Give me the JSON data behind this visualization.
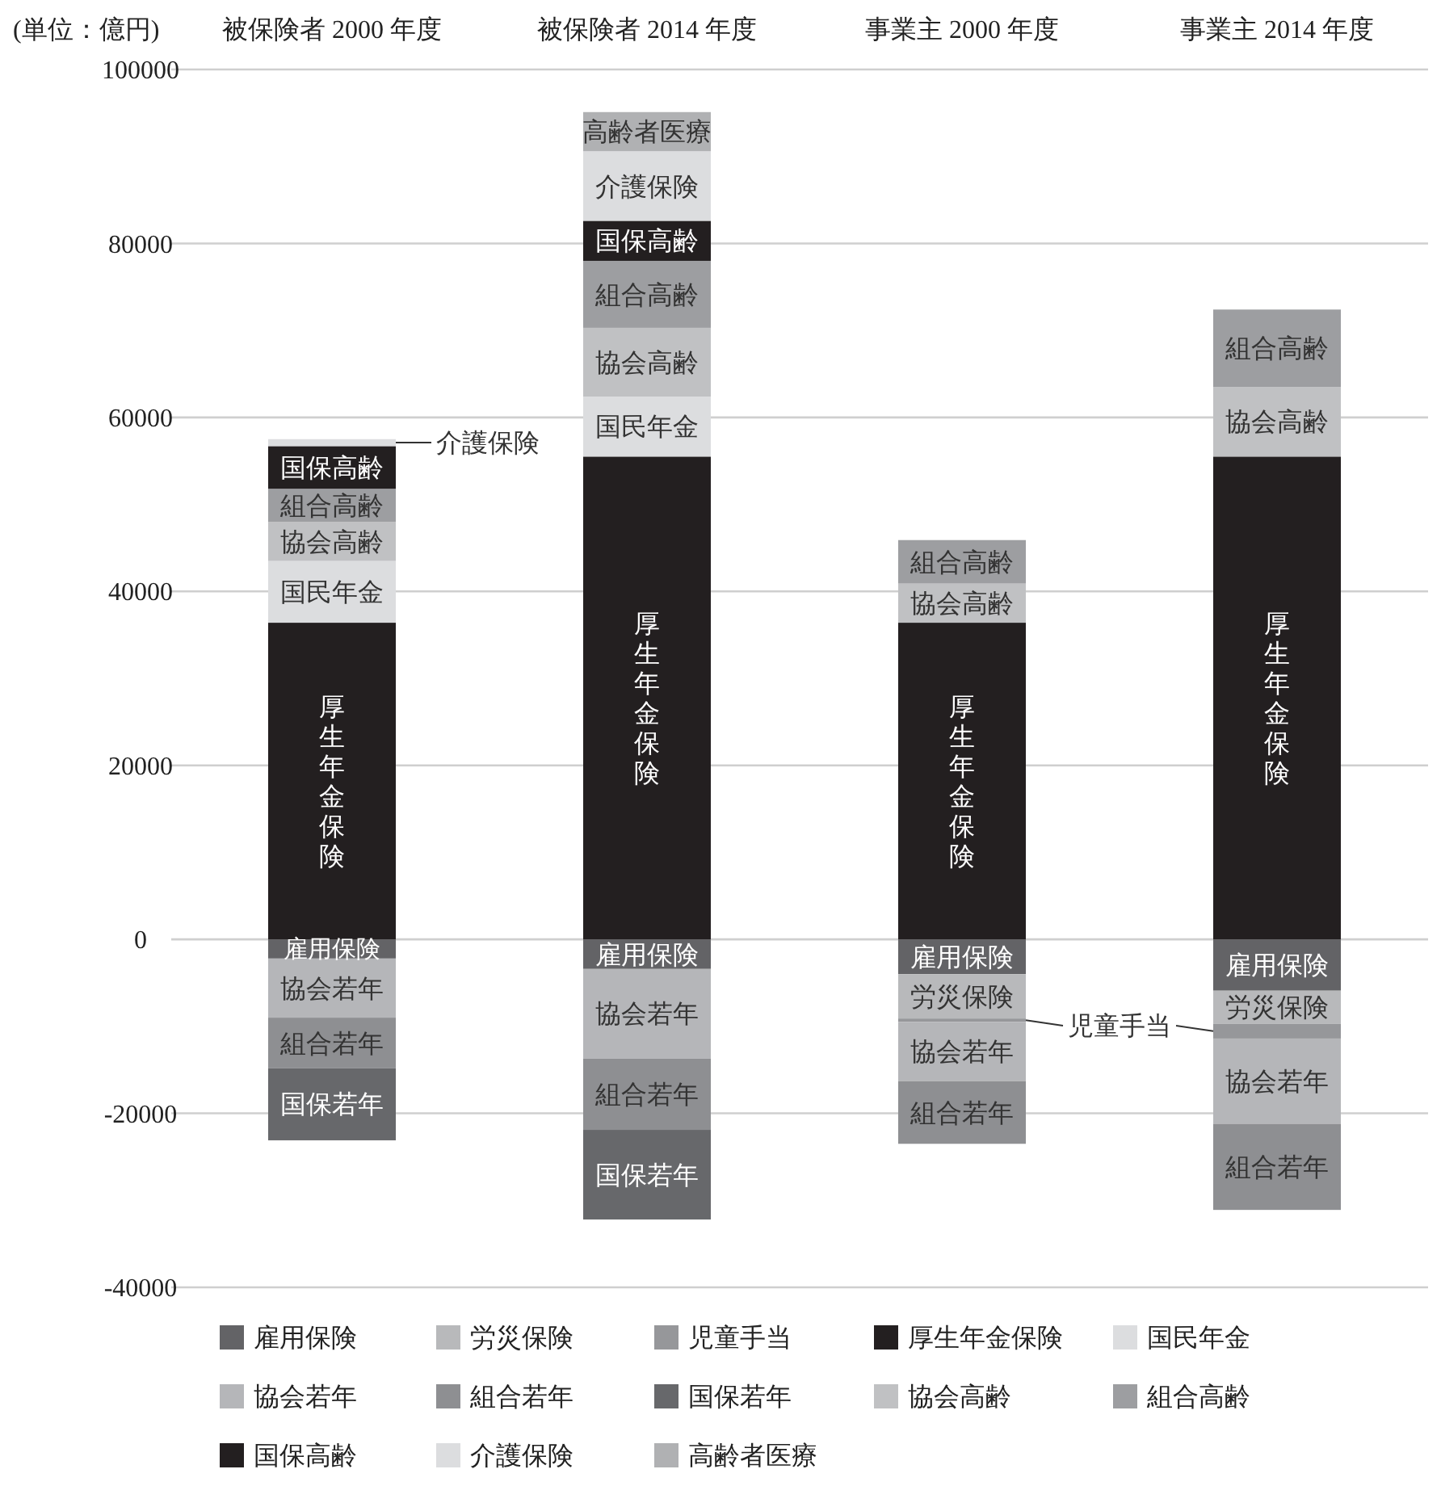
{
  "chart_data": {
    "type": "bar",
    "stacked": true,
    "ylabel": "(単位：億円)",
    "categories": [
      "被保険者 2000 年度",
      "被保険者 2014 年度",
      "事業主 2000 年度",
      "事業主 2014 年度"
    ],
    "ylim": [
      -40000,
      100000
    ],
    "yticks": [
      -40000,
      -20000,
      0,
      20000,
      40000,
      60000,
      80000,
      100000
    ],
    "grid": "y",
    "legend": "bottom",
    "series": [
      {
        "name": "雇用保険",
        "color": "#636366",
        "values": [
          -2200,
          -3400,
          -4000,
          -5900
        ],
        "value_labels": [
          "雇用保険",
          "雇用保険",
          "雇用保険",
          "雇用保険"
        ]
      },
      {
        "name": "労災保険",
        "color": "#b8b9bb",
        "values": [
          null,
          null,
          -5100,
          -3800
        ],
        "value_labels": [
          null,
          null,
          "労災保険",
          "労災保険"
        ]
      },
      {
        "name": "児童手当",
        "color": "#96979a",
        "values": [
          null,
          null,
          -400,
          -1700
        ],
        "value_labels": [
          null,
          null,
          "児童手当",
          null
        ]
      },
      {
        "name": "厚生年金保険",
        "color": "#231f20",
        "values": [
          36400,
          55500,
          36400,
          55500
        ],
        "value_labels": [
          "厚生年金保険",
          "厚生年金保険",
          "厚生年金保険",
          "厚生年金保険"
        ]
      },
      {
        "name": "国民年金",
        "color": "#dcdddf",
        "values": [
          7100,
          6900,
          null,
          null
        ],
        "value_labels": [
          "国民年金",
          "国民年金",
          null,
          null
        ]
      },
      {
        "name": "協会若年",
        "color": "#b5b6b9",
        "values": [
          -6800,
          -10300,
          -6800,
          -9800
        ],
        "value_labels": [
          "協会若年",
          "協会若年",
          "協会若年",
          "協会若年"
        ]
      },
      {
        "name": "組合若年",
        "color": "#8e8f92",
        "values": [
          -5800,
          -8200,
          -7200,
          -9900
        ],
        "value_labels": [
          "組合若年",
          "組合若年",
          "組合若年",
          "組合若年"
        ]
      },
      {
        "name": "国保若年",
        "color": "#67686b",
        "values": [
          -8300,
          -10300,
          null,
          null
        ],
        "value_labels": [
          "国保若年",
          "国保若年",
          null,
          null
        ]
      },
      {
        "name": "協会高齢",
        "color": "#c0c1c3",
        "values": [
          4500,
          7900,
          4500,
          8000
        ],
        "value_labels": [
          "協会高齢",
          "協会高齢",
          "協会高齢",
          "協会高齢"
        ]
      },
      {
        "name": "組合高齢",
        "color": "#9d9ea1",
        "values": [
          3800,
          7700,
          5000,
          8900
        ],
        "value_labels": [
          "組合高齢",
          "組合高齢",
          "組合高齢",
          "組合高齢"
        ]
      },
      {
        "name": "国保高齢",
        "color": "#231f20",
        "values": [
          4900,
          4600,
          null,
          null
        ],
        "value_labels": [
          "国保高齢",
          "国保高齢",
          null,
          null
        ]
      },
      {
        "name": "介護保険",
        "color": "#dcdddf",
        "values": [
          800,
          8000,
          null,
          null
        ],
        "value_labels": [
          "介護保険",
          "介護保険",
          null,
          null
        ]
      },
      {
        "name": "高齢者医療",
        "color": "#b0b1b3",
        "values": [
          null,
          4500,
          null,
          null
        ],
        "value_labels": [
          null,
          "高齢者医療",
          null,
          null
        ]
      }
    ]
  }
}
